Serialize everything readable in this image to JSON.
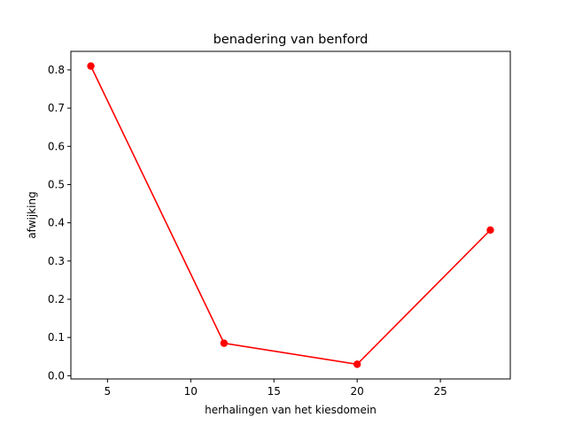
{
  "chart_data": {
    "type": "line",
    "title": "benadering van benford",
    "xlabel": "herhalingen van het kiesdomein",
    "ylabel": "afwijking",
    "xlim": [
      2.8,
      29.2
    ],
    "ylim": [
      -0.0085,
      0.8485
    ],
    "x_ticks": [
      5,
      10,
      15,
      20,
      25
    ],
    "y_ticks": [
      0.0,
      0.1,
      0.2,
      0.3,
      0.4,
      0.5,
      0.6,
      0.7,
      0.8
    ],
    "grid": false,
    "series": [
      {
        "color": "#ff0000",
        "marker": "circle",
        "x": [
          4,
          12,
          20,
          28
        ],
        "y": [
          0.81,
          0.085,
          0.03,
          0.381
        ]
      }
    ]
  }
}
